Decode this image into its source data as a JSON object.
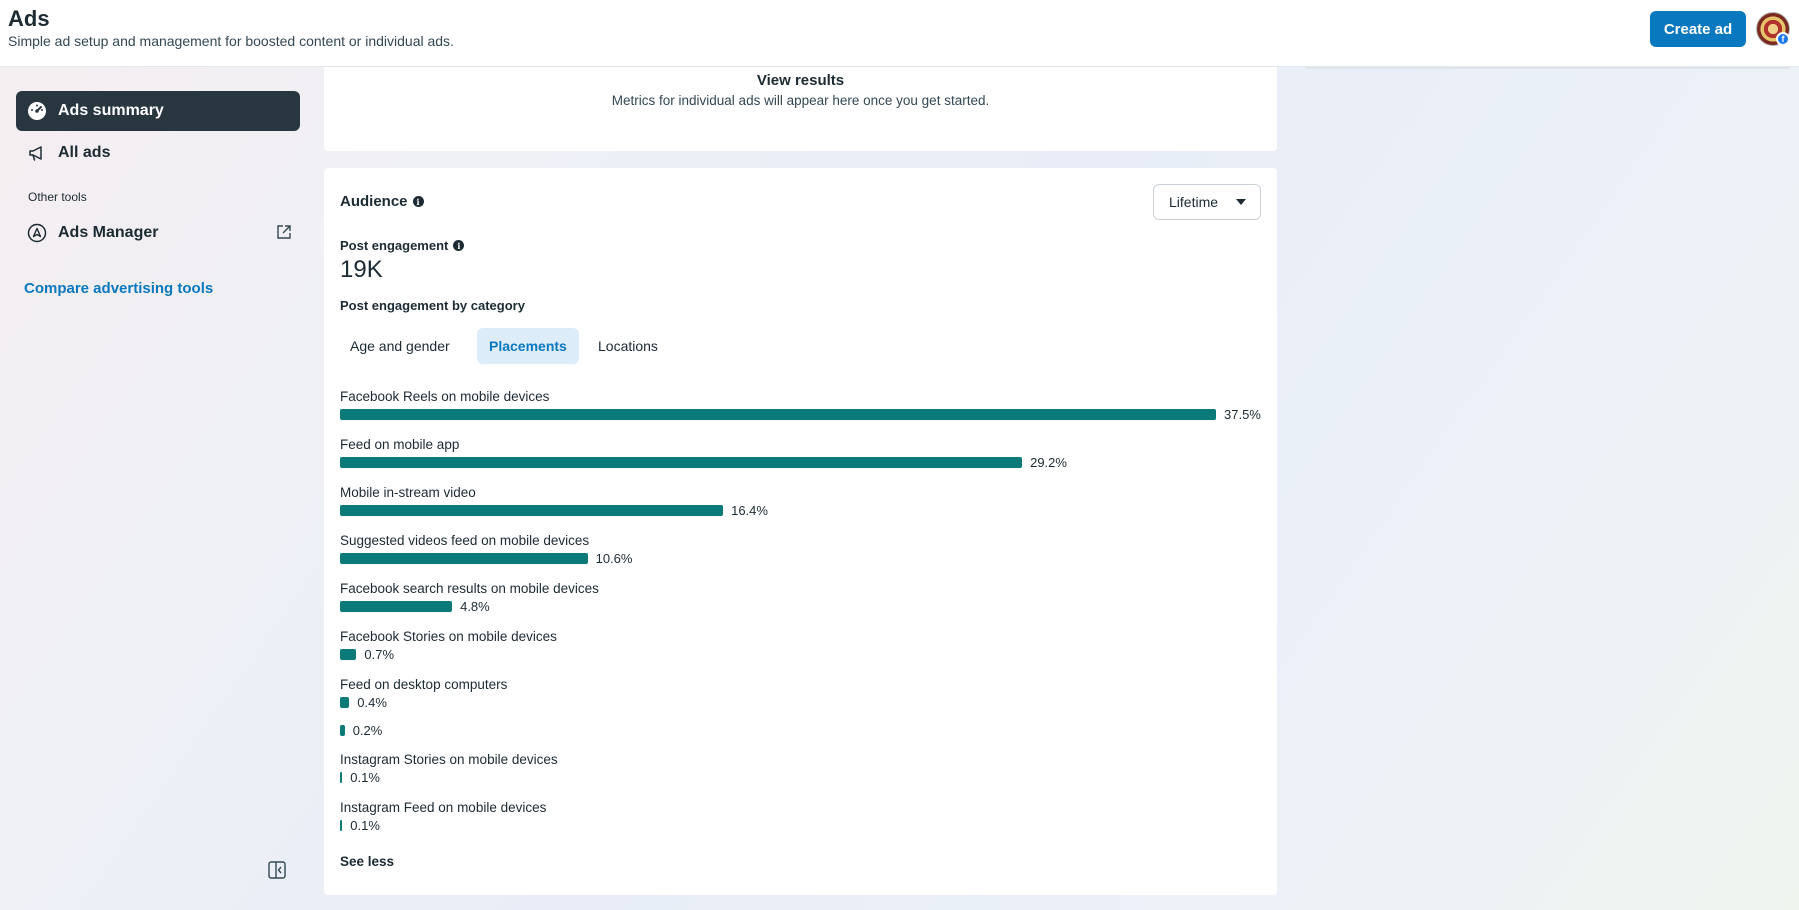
{
  "header": {
    "title": "Ads",
    "subtitle": "Simple ad setup and management for boosted content or individual ads.",
    "create_label": "Create ad",
    "avatar_badge": "f"
  },
  "sidebar": {
    "items": [
      {
        "label": "Ads summary",
        "icon": "speedometer-icon",
        "active": true
      },
      {
        "label": "All ads",
        "icon": "megaphone-icon",
        "active": false
      }
    ],
    "other_tools_heading": "Other tools",
    "ads_manager_label": "Ads Manager",
    "compare_label": "Compare advertising tools"
  },
  "results_card": {
    "title": "View results",
    "description": "Metrics for individual ads will appear here once you get started."
  },
  "audience": {
    "title": "Audience",
    "range_label": "Lifetime",
    "post_engagement_label": "Post engagement",
    "post_engagement_value": "19K",
    "by_category_label": "Post engagement by category",
    "tabs": [
      {
        "label": "Age and gender",
        "active": false
      },
      {
        "label": "Placements",
        "active": true
      },
      {
        "label": "Locations",
        "active": false
      }
    ],
    "placements": [
      {
        "label": "Facebook Reels on mobile devices",
        "value": 37.5,
        "pct": "37.5%"
      },
      {
        "label": "Feed on mobile app",
        "value": 29.2,
        "pct": "29.2%"
      },
      {
        "label": "Mobile in-stream video",
        "value": 16.4,
        "pct": "16.4%"
      },
      {
        "label": "Suggested videos feed on mobile devices",
        "value": 10.6,
        "pct": "10.6%"
      },
      {
        "label": "Facebook search results on mobile devices",
        "value": 4.8,
        "pct": "4.8%"
      },
      {
        "label": "Facebook Stories on mobile devices",
        "value": 0.7,
        "pct": "0.7%"
      },
      {
        "label": "Feed on desktop computers",
        "value": 0.4,
        "pct": "0.4%"
      },
      {
        "label": "",
        "value": 0.2,
        "pct": "0.2%"
      },
      {
        "label": "Instagram Stories on mobile devices",
        "value": 0.1,
        "pct": "0.1%"
      },
      {
        "label": "Instagram Feed on mobile devices",
        "value": 0.1,
        "pct": "0.1%"
      }
    ],
    "see_less_label": "See less"
  },
  "colors": {
    "primary": "#0a78be",
    "bar": "#0b7a78",
    "active_nav": "#283640"
  }
}
